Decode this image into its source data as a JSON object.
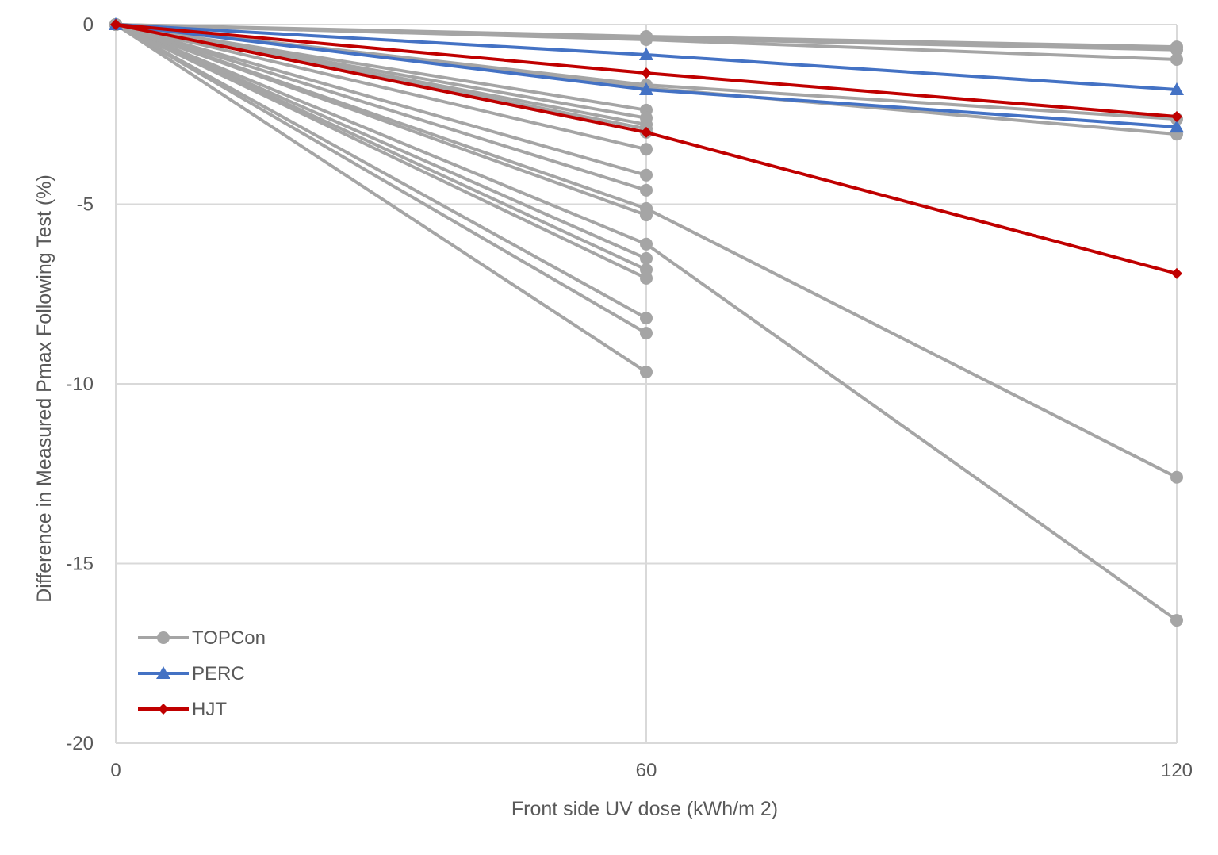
{
  "chart_data": {
    "type": "line",
    "title": "",
    "xlabel": "Front side UV dose (kWh/m 2)",
    "ylabel": "Difference in Measured Pmax Following Test (%)",
    "x": [
      0,
      60,
      120
    ],
    "x_ticks": [
      "0",
      "60",
      "120"
    ],
    "y_ticks": [
      "0",
      "-5",
      "-10",
      "-15",
      "-20"
    ],
    "ylim": [
      -20,
      0
    ],
    "xlim": [
      0,
      120
    ],
    "grid": true,
    "legend_position": "bottom-left",
    "legend": [
      {
        "name": "TOPCon",
        "color": "#a5a5a5",
        "marker": "circle"
      },
      {
        "name": "PERC",
        "color": "#4472c4",
        "marker": "triangle"
      },
      {
        "name": "HJT",
        "color": "#c00000",
        "marker": "diamond"
      }
    ],
    "series": [
      {
        "group": "TOPCon",
        "values": [
          0,
          -0.33,
          -0.62
        ]
      },
      {
        "group": "TOPCon",
        "values": [
          0,
          -0.38,
          -0.7
        ]
      },
      {
        "group": "TOPCon",
        "values": [
          0,
          -0.42,
          -0.97
        ]
      },
      {
        "group": "TOPCon",
        "values": [
          0,
          -1.68,
          -2.63
        ]
      },
      {
        "group": "TOPCon",
        "values": [
          0,
          -1.76,
          -3.05
        ]
      },
      {
        "group": "TOPCon",
        "values": [
          0,
          -5.12,
          -12.6
        ]
      },
      {
        "group": "TOPCon",
        "values": [
          0,
          -6.11,
          -16.58
        ]
      },
      {
        "group": "TOPCon",
        "values": [
          0,
          -2.38,
          null
        ]
      },
      {
        "group": "TOPCon",
        "values": [
          0,
          -2.6,
          null
        ]
      },
      {
        "group": "TOPCon",
        "values": [
          0,
          -2.78,
          null
        ]
      },
      {
        "group": "TOPCon",
        "values": [
          0,
          -2.9,
          null
        ]
      },
      {
        "group": "TOPCon",
        "values": [
          0,
          -3.0,
          null
        ]
      },
      {
        "group": "TOPCon",
        "values": [
          0,
          -3.47,
          null
        ]
      },
      {
        "group": "TOPCon",
        "values": [
          0,
          -4.19,
          null
        ]
      },
      {
        "group": "TOPCon",
        "values": [
          0,
          -4.61,
          null
        ]
      },
      {
        "group": "TOPCon",
        "values": [
          0,
          -5.3,
          null
        ]
      },
      {
        "group": "TOPCon",
        "values": [
          0,
          -6.51,
          null
        ]
      },
      {
        "group": "TOPCon",
        "values": [
          0,
          -6.82,
          null
        ]
      },
      {
        "group": "TOPCon",
        "values": [
          0,
          -7.06,
          null
        ]
      },
      {
        "group": "TOPCon",
        "values": [
          0,
          -8.17,
          null
        ]
      },
      {
        "group": "TOPCon",
        "values": [
          0,
          -8.59,
          null
        ]
      },
      {
        "group": "TOPCon",
        "values": [
          0,
          -9.67,
          null
        ]
      },
      {
        "group": "PERC",
        "values": [
          0,
          -0.84,
          -1.81
        ]
      },
      {
        "group": "PERC",
        "values": [
          0,
          -1.81,
          -2.85
        ]
      },
      {
        "group": "HJT",
        "values": [
          0,
          -1.35,
          -2.56
        ]
      },
      {
        "group": "HJT",
        "values": [
          0,
          -3.0,
          -6.93
        ]
      }
    ]
  }
}
